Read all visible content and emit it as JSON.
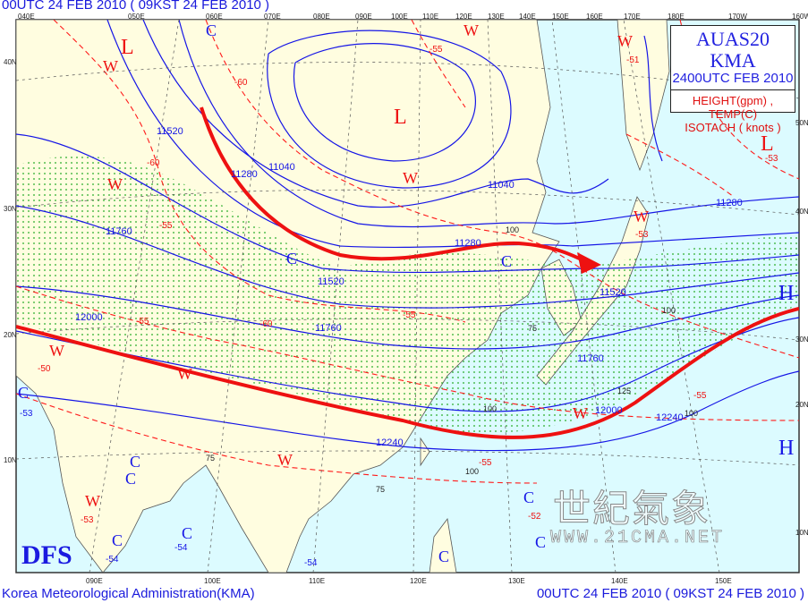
{
  "header": {
    "title": "00UTC 24 FEB 2010 ( 09KST 24 FEB 2010 )"
  },
  "footer": {
    "agency": "Korea Meteorological Administration(KMA)",
    "valid": "00UTC 24 FEB 2010 ( 09KST 24 FEB 2010 )"
  },
  "title_box": {
    "product": "AUAS20  KMA",
    "time": "2400UTC FEB 2010",
    "line1": "HEIGHT(gpm) , TEMP(C)",
    "line2": "ISOTACH     ( knots )"
  },
  "logo": "DFS",
  "watermark": {
    "cjk": "世紀氣象",
    "url": "WWW.21CMA.NET"
  },
  "top_lon_labels": [
    "040E",
    "050E",
    "060E",
    "070E",
    "080E",
    "090E",
    "100E",
    "110E",
    "120E",
    "130E",
    "140E",
    "150E",
    "160E",
    "170E",
    "180E",
    "170W",
    "160W"
  ],
  "bottom_lon_labels": [
    "090E",
    "100E",
    "110E",
    "120E",
    "130E",
    "140E",
    "150E"
  ],
  "left_lat_labels": [
    "40N",
    "30N",
    "20N",
    "10N"
  ],
  "right_lat_labels": [
    "50N",
    "40N",
    "30N",
    "20N",
    "10N"
  ],
  "centers": [
    {
      "symbol": "L",
      "kind": "low"
    },
    {
      "symbol": "L",
      "kind": "low"
    },
    {
      "symbol": "L",
      "kind": "low"
    },
    {
      "symbol": "W",
      "kind": "warm"
    },
    {
      "symbol": "W",
      "kind": "warm"
    },
    {
      "symbol": "W",
      "kind": "warm"
    },
    {
      "symbol": "W",
      "kind": "warm"
    },
    {
      "symbol": "W",
      "kind": "warm"
    },
    {
      "symbol": "W",
      "kind": "warm"
    },
    {
      "symbol": "W",
      "kind": "warm"
    },
    {
      "symbol": "W",
      "kind": "warm"
    },
    {
      "symbol": "W",
      "kind": "warm"
    },
    {
      "symbol": "W",
      "kind": "warm"
    },
    {
      "symbol": "W",
      "kind": "warm"
    },
    {
      "symbol": "C",
      "kind": "cold"
    },
    {
      "symbol": "C",
      "kind": "cold"
    },
    {
      "symbol": "C",
      "kind": "cold"
    },
    {
      "symbol": "C",
      "kind": "cold"
    },
    {
      "symbol": "C",
      "kind": "cold"
    },
    {
      "symbol": "C",
      "kind": "cold"
    },
    {
      "symbol": "C",
      "kind": "cold"
    },
    {
      "symbol": "C",
      "kind": "cold"
    },
    {
      "symbol": "C",
      "kind": "cold"
    },
    {
      "symbol": "C",
      "kind": "cold"
    },
    {
      "symbol": "C",
      "kind": "cold"
    },
    {
      "symbol": "H",
      "kind": "high"
    },
    {
      "symbol": "H",
      "kind": "high"
    }
  ],
  "height_labels": [
    "11520",
    "11280",
    "11040",
    "11040",
    "11280",
    "11520",
    "11520",
    "11760",
    "11760",
    "12000",
    "12000",
    "12240",
    "12240",
    "11280",
    "11760"
  ],
  "temp_labels": [
    "-55",
    "-60",
    "-60",
    "-55",
    "-55",
    "-50",
    "-55",
    "-60",
    "-55",
    "-55",
    "-53",
    "-52",
    "-53",
    "-54",
    "-54",
    "-54",
    "-53",
    "-51",
    "-53"
  ],
  "isotach_labels": [
    "100",
    "100",
    "125",
    "100",
    "75",
    "100",
    "75",
    "100",
    "75"
  ],
  "colors": {
    "height": "#1515e6",
    "temp": "#ff1a1a",
    "jet": "#ee1111",
    "ocean": "#dcfbff",
    "land": "#fffde0",
    "isotach_dots": "#22aa22"
  }
}
